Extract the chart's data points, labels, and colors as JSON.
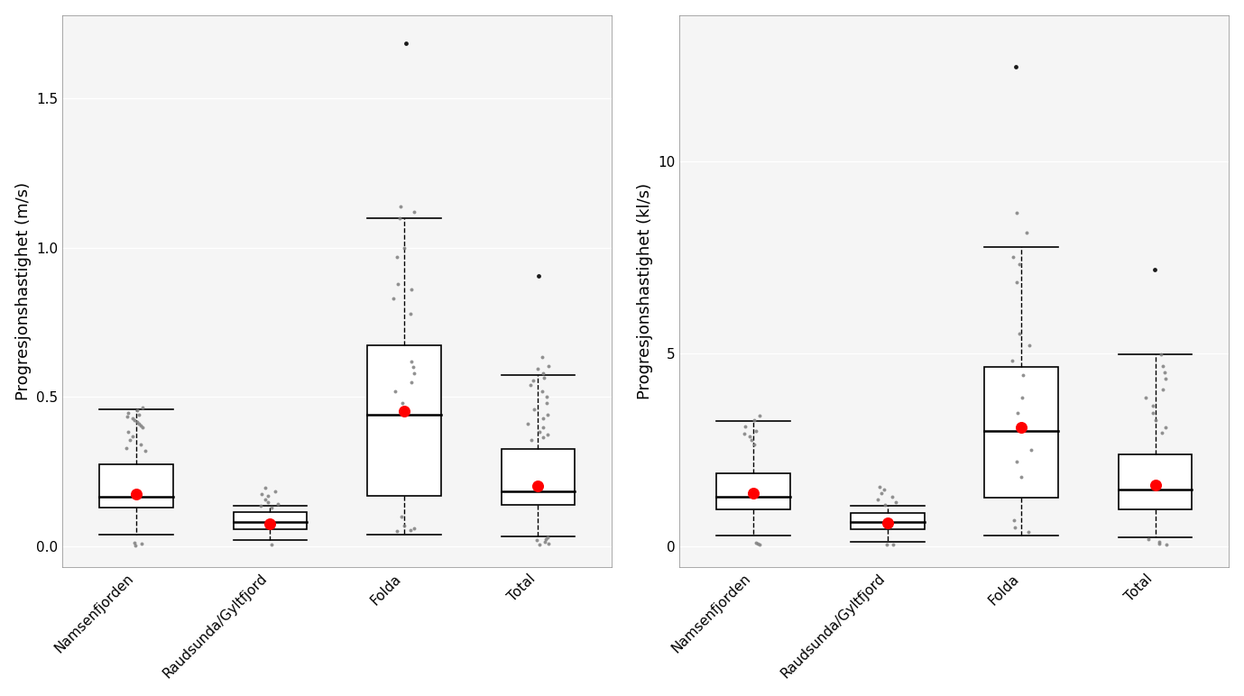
{
  "categories": [
    "Namsenfjorden",
    "Raudsunda/Gyltfjord",
    "Folda",
    "Total"
  ],
  "panel1": {
    "ylabel": "Progresjonshastighet (m/s)",
    "ylim": [
      -0.07,
      1.78
    ],
    "yticks": [
      0.0,
      0.5,
      1.0,
      1.5
    ],
    "ytick_labels": [
      "0.0",
      "0.5",
      "1.0",
      "1.5"
    ],
    "boxes": [
      {
        "q1": 0.13,
        "median": 0.165,
        "q3": 0.275,
        "whislo": 0.04,
        "whishi": 0.46,
        "mean": 0.175,
        "fliers": [
          0.465,
          0.455,
          0.448,
          0.442,
          0.436,
          0.43,
          0.424,
          0.418,
          0.412,
          0.406,
          0.4,
          0.385,
          0.37,
          0.355,
          0.34,
          0.33,
          0.32,
          0.012,
          0.008,
          0.004
        ],
        "far_fliers": []
      },
      {
        "q1": 0.058,
        "median": 0.083,
        "q3": 0.115,
        "whislo": 0.02,
        "whishi": 0.135,
        "mean": 0.077,
        "fliers": [
          0.195,
          0.185,
          0.175,
          0.168,
          0.158,
          0.148,
          0.143,
          0.137,
          0.13,
          0.005
        ],
        "far_fliers": []
      },
      {
        "q1": 0.17,
        "median": 0.44,
        "q3": 0.675,
        "whislo": 0.04,
        "whishi": 1.1,
        "mean": 0.453,
        "fliers": [
          1.14,
          1.12,
          1.1,
          1.0,
          0.97,
          0.88,
          0.86,
          0.83,
          0.78,
          0.62,
          0.6,
          0.58,
          0.55,
          0.52,
          0.48,
          0.1,
          0.07,
          0.06,
          0.055,
          0.05
        ],
        "far_fliers": [
          1.685
        ]
      },
      {
        "q1": 0.138,
        "median": 0.184,
        "q3": 0.325,
        "whislo": 0.033,
        "whishi": 0.575,
        "mean": 0.203,
        "fliers": [
          0.635,
          0.605,
          0.595,
          0.58,
          0.565,
          0.555,
          0.542,
          0.52,
          0.5,
          0.48,
          0.46,
          0.44,
          0.43,
          0.41,
          0.4,
          0.385,
          0.375,
          0.365,
          0.355,
          0.03,
          0.025,
          0.02,
          0.015,
          0.01,
          0.005
        ],
        "far_fliers": [
          0.905
        ]
      }
    ]
  },
  "panel2": {
    "ylabel": "Progresjonshastighet (kl/s)",
    "ylim": [
      -0.55,
      13.8
    ],
    "yticks": [
      0,
      5,
      10
    ],
    "ytick_labels": [
      "0",
      "5",
      "10"
    ],
    "boxes": [
      {
        "q1": 0.95,
        "median": 1.28,
        "q3": 1.9,
        "whislo": 0.28,
        "whishi": 3.25,
        "mean": 1.38,
        "fliers": [
          3.38,
          3.28,
          3.1,
          3.0,
          2.92,
          2.85,
          2.75,
          2.65,
          0.08,
          0.06,
          0.04
        ],
        "far_fliers": []
      },
      {
        "q1": 0.43,
        "median": 0.62,
        "q3": 0.87,
        "whislo": 0.12,
        "whishi": 1.04,
        "mean": 0.6,
        "fliers": [
          1.55,
          1.46,
          1.38,
          1.29,
          1.21,
          1.13,
          1.06,
          0.04,
          0.03
        ],
        "far_fliers": []
      },
      {
        "q1": 1.25,
        "median": 3.0,
        "q3": 4.65,
        "whislo": 0.28,
        "whishi": 7.78,
        "mean": 3.08,
        "fliers": [
          8.65,
          8.15,
          7.52,
          7.32,
          6.85,
          5.52,
          5.22,
          4.82,
          4.45,
          3.85,
          3.45,
          2.5,
          2.2,
          1.8,
          0.68,
          0.48,
          0.38
        ],
        "far_fliers": [
          12.45
        ]
      },
      {
        "q1": 0.95,
        "median": 1.48,
        "q3": 2.38,
        "whislo": 0.22,
        "whishi": 4.98,
        "mean": 1.58,
        "fliers": [
          4.98,
          4.68,
          4.52,
          4.35,
          4.08,
          3.85,
          3.65,
          3.45,
          3.28,
          3.08,
          2.95,
          0.18,
          0.12,
          0.07,
          0.04
        ],
        "far_fliers": [
          7.18
        ]
      }
    ]
  },
  "flier_color": "#808080",
  "far_flier_color": "#1a1a1a",
  "mean_color": "#ff0000",
  "bg_color": "#ffffff",
  "panel_bg": "#f5f5f5",
  "grid_color": "#ffffff",
  "tick_label_fontsize": 11,
  "axis_label_fontsize": 13,
  "box_width": 0.55
}
